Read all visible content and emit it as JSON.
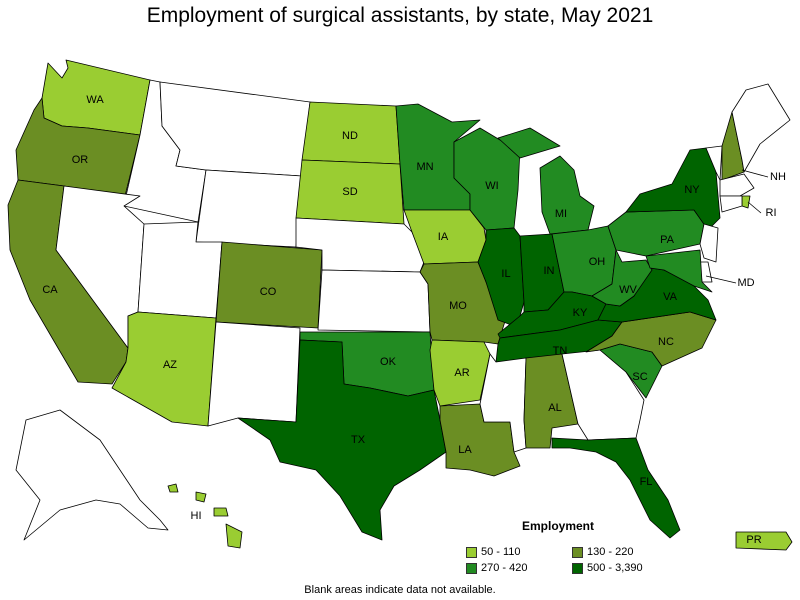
{
  "title": "Employment of surgical assistants, by state, May 2021",
  "note": "Blank areas indicate data not available.",
  "legend": {
    "title": "Employment",
    "classes": [
      {
        "label": "50 - 110",
        "color": "#9acd32"
      },
      {
        "label": "130 - 220",
        "color": "#6b8e23"
      },
      {
        "label": "270 - 420",
        "color": "#228b22"
      },
      {
        "label": "500 - 3,390",
        "color": "#006400"
      }
    ]
  },
  "colors": {
    "no_data": "#ffffff",
    "border": "#000000"
  },
  "states": [
    {
      "abbr": "WA",
      "cls": 0
    },
    {
      "abbr": "OR",
      "cls": 1
    },
    {
      "abbr": "CA",
      "cls": 1
    },
    {
      "abbr": "ID",
      "cls": -1
    },
    {
      "abbr": "NV",
      "cls": -1
    },
    {
      "abbr": "MT",
      "cls": -1
    },
    {
      "abbr": "WY",
      "cls": -1
    },
    {
      "abbr": "UT",
      "cls": -1
    },
    {
      "abbr": "AZ",
      "cls": 0
    },
    {
      "abbr": "CO",
      "cls": 1
    },
    {
      "abbr": "NM",
      "cls": -1
    },
    {
      "abbr": "ND",
      "cls": 0
    },
    {
      "abbr": "SD",
      "cls": 0
    },
    {
      "abbr": "NE",
      "cls": -1
    },
    {
      "abbr": "KS",
      "cls": -1
    },
    {
      "abbr": "OK",
      "cls": 2
    },
    {
      "abbr": "TX",
      "cls": 3
    },
    {
      "abbr": "MN",
      "cls": 2
    },
    {
      "abbr": "IA",
      "cls": 0
    },
    {
      "abbr": "MO",
      "cls": 1
    },
    {
      "abbr": "AR",
      "cls": 0
    },
    {
      "abbr": "LA",
      "cls": 1
    },
    {
      "abbr": "WI",
      "cls": 2
    },
    {
      "abbr": "IL",
      "cls": 3
    },
    {
      "abbr": "MI",
      "cls": 2
    },
    {
      "abbr": "IN",
      "cls": 3
    },
    {
      "abbr": "OH",
      "cls": 2
    },
    {
      "abbr": "KY",
      "cls": 3
    },
    {
      "abbr": "TN",
      "cls": 3
    },
    {
      "abbr": "MS",
      "cls": -1
    },
    {
      "abbr": "AL",
      "cls": 1
    },
    {
      "abbr": "GA",
      "cls": -1
    },
    {
      "abbr": "FL",
      "cls": 3
    },
    {
      "abbr": "SC",
      "cls": 2
    },
    {
      "abbr": "NC",
      "cls": 1
    },
    {
      "abbr": "VA",
      "cls": 3
    },
    {
      "abbr": "WV",
      "cls": 2
    },
    {
      "abbr": "PA",
      "cls": 2
    },
    {
      "abbr": "NY",
      "cls": 3
    },
    {
      "abbr": "VT",
      "cls": -1
    },
    {
      "abbr": "NH",
      "cls": 1
    },
    {
      "abbr": "ME",
      "cls": -1
    },
    {
      "abbr": "MA",
      "cls": -1
    },
    {
      "abbr": "RI",
      "cls": 0
    },
    {
      "abbr": "CT",
      "cls": -1
    },
    {
      "abbr": "NJ",
      "cls": -1
    },
    {
      "abbr": "DE",
      "cls": -1
    },
    {
      "abbr": "MD",
      "cls": 2
    },
    {
      "abbr": "AK",
      "cls": -1
    },
    {
      "abbr": "HI",
      "cls": 0
    },
    {
      "abbr": "PR",
      "cls": 0
    }
  ],
  "labels": [
    "WA",
    "OR",
    "CA",
    "AZ",
    "CO",
    "ND",
    "SD",
    "MN",
    "IA",
    "MO",
    "OK",
    "AR",
    "TX",
    "LA",
    "WI",
    "IL",
    "MI",
    "IN",
    "OH",
    "KY",
    "TN",
    "AL",
    "FL",
    "SC",
    "NC",
    "VA",
    "WV",
    "PA",
    "NY",
    "NH",
    "RI",
    "MD",
    "HI",
    "PR"
  ]
}
